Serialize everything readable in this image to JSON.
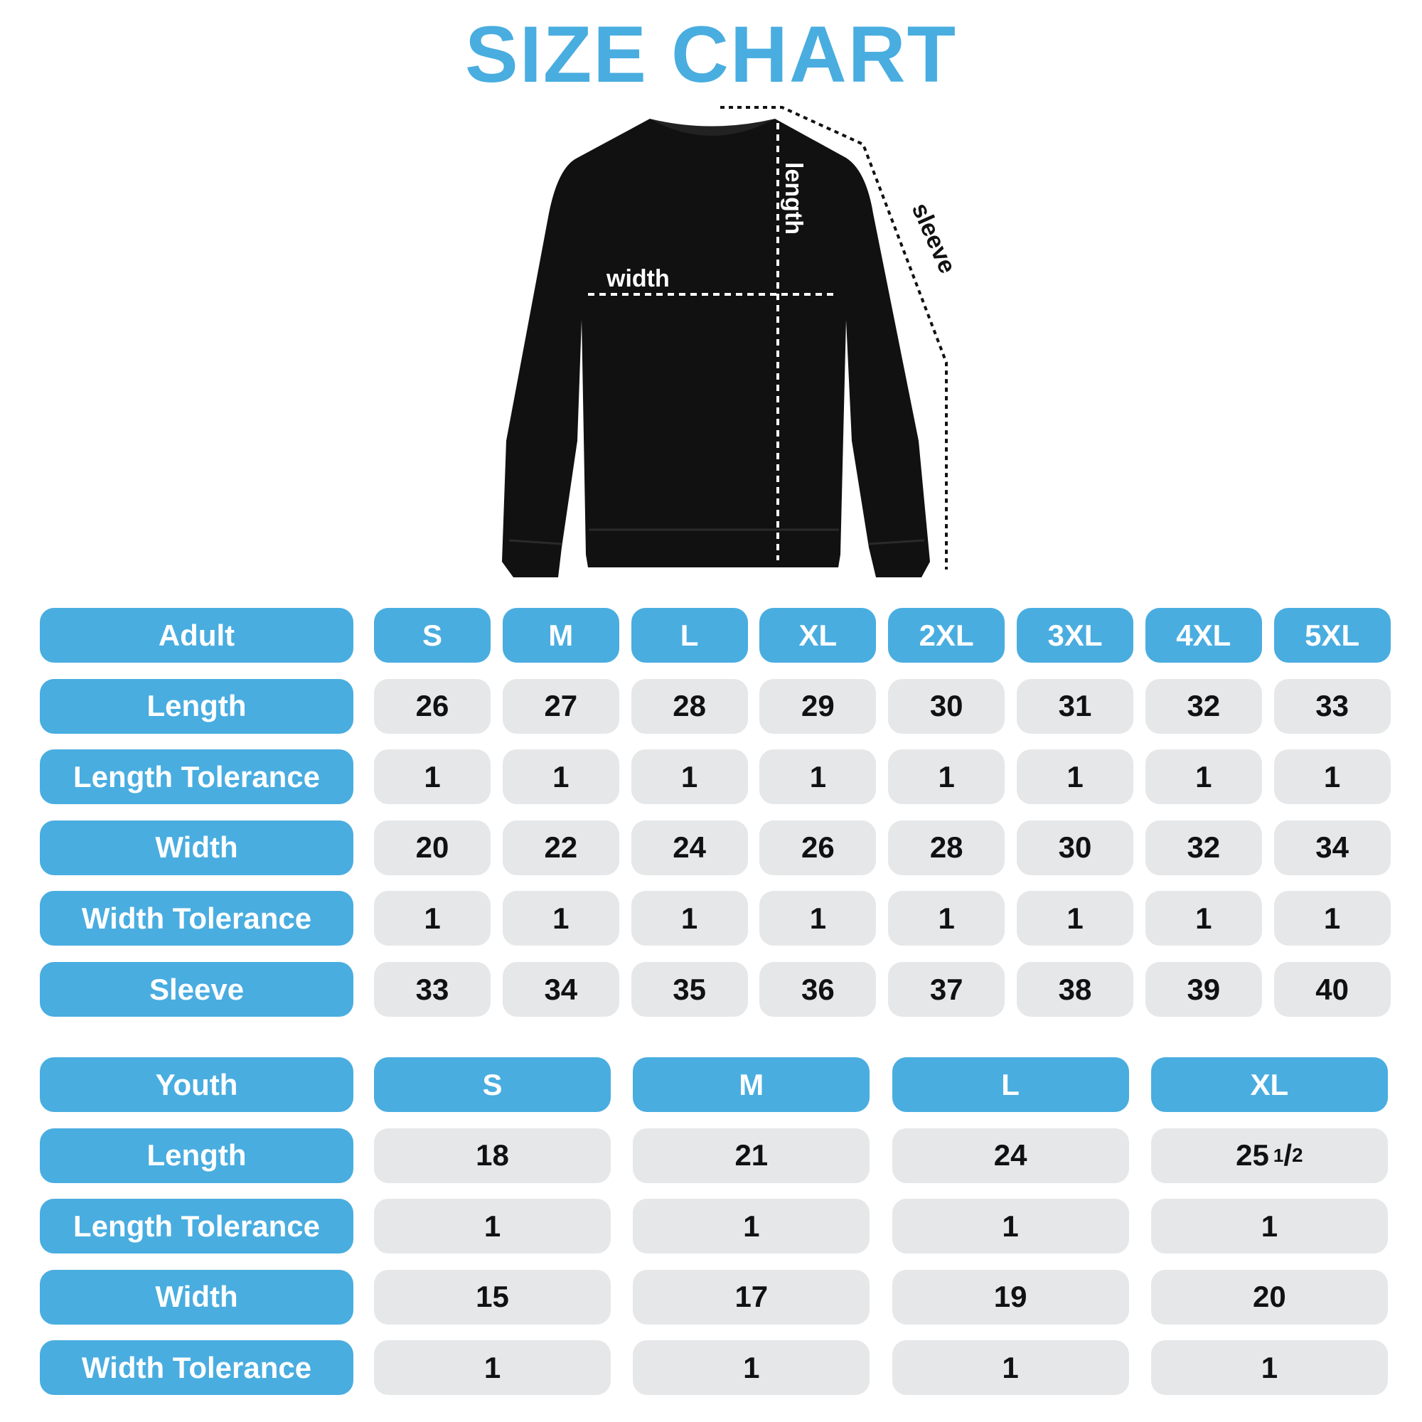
{
  "title": "SIZE CHART",
  "diagram": {
    "width_label": "width",
    "length_label": "length",
    "sleeve_label": "sleeve"
  },
  "colors": {
    "accent": "#49ADE0",
    "cell": "#E6E7E9",
    "garment": "#111111"
  },
  "adult": {
    "header": "Adult",
    "sizes": [
      "S",
      "M",
      "L",
      "XL",
      "2XL",
      "3XL",
      "4XL",
      "5XL"
    ],
    "rows": [
      {
        "label": "Length",
        "values": [
          "26",
          "27",
          "28",
          "29",
          "30",
          "31",
          "32",
          "33"
        ]
      },
      {
        "label": "Length Tolerance",
        "values": [
          "1",
          "1",
          "1",
          "1",
          "1",
          "1",
          "1",
          "1"
        ]
      },
      {
        "label": "Width",
        "values": [
          "20",
          "22",
          "24",
          "26",
          "28",
          "30",
          "32",
          "34"
        ]
      },
      {
        "label": "Width Tolerance",
        "values": [
          "1",
          "1",
          "1",
          "1",
          "1",
          "1",
          "1",
          "1"
        ]
      },
      {
        "label": "Sleeve",
        "values": [
          "33",
          "34",
          "35",
          "36",
          "37",
          "38",
          "39",
          "40"
        ]
      }
    ]
  },
  "youth": {
    "header": "Youth",
    "sizes": [
      "S",
      "M",
      "L",
      "XL"
    ],
    "rows": [
      {
        "label": "Length",
        "values": [
          "18",
          "21",
          "24",
          {
            "whole": "25",
            "num": "1",
            "den": "2"
          }
        ]
      },
      {
        "label": "Length Tolerance",
        "values": [
          "1",
          "1",
          "1",
          "1"
        ]
      },
      {
        "label": "Width",
        "values": [
          "15",
          "17",
          "19",
          "20"
        ]
      },
      {
        "label": "Width Tolerance",
        "values": [
          "1",
          "1",
          "1",
          "1"
        ]
      }
    ]
  }
}
